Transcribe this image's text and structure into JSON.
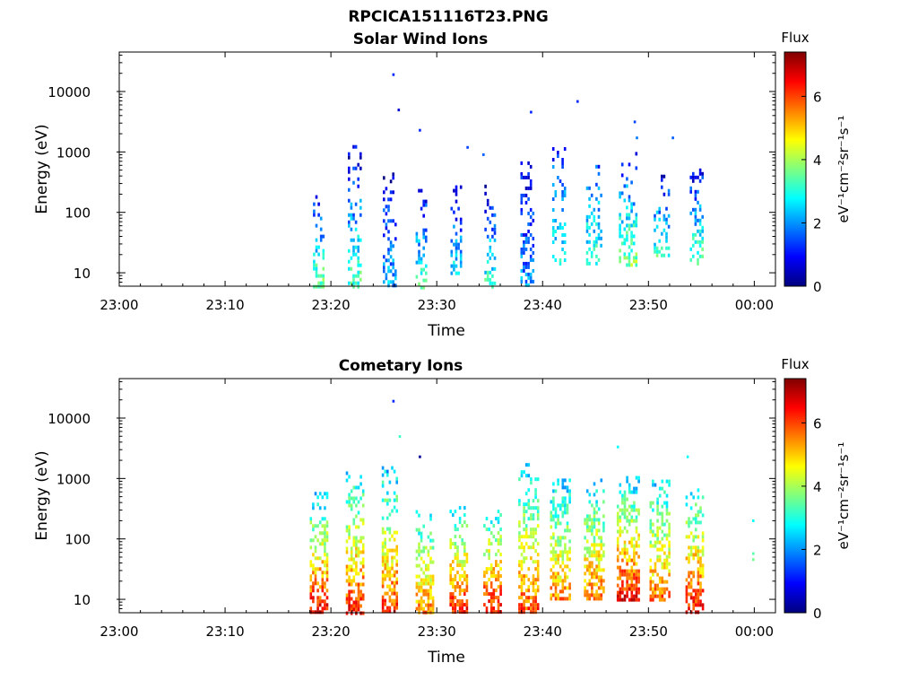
{
  "figure_title": "RPCICA151116T23.PNG",
  "colors": {
    "colormap": [
      "#00007f",
      "#0000ff",
      "#007fff",
      "#00ffff",
      "#7fff7f",
      "#ffff00",
      "#ff7f00",
      "#ff0000",
      "#7f0000"
    ],
    "background": "#ffffff"
  },
  "chart_data": [
    {
      "type": "heatmap",
      "title": "Solar Wind Ions",
      "xlabel": "Time",
      "ylabel": "Energy (eV)",
      "x_ticks": [
        "23:00",
        "23:10",
        "23:20",
        "23:30",
        "23:40",
        "23:50",
        "00:00"
      ],
      "xlim_minutes": [
        0,
        62
      ],
      "y_scale": "log",
      "y_ticks": [
        "10",
        "100",
        "1000",
        "10000"
      ],
      "ylim": [
        6,
        45000
      ],
      "colorbar": {
        "title": "Flux",
        "label": "eV⁻¹cm⁻²sr⁻¹s⁻¹",
        "range": [
          0,
          7.4
        ],
        "ticks": [
          "0",
          "2",
          "4",
          "6"
        ]
      },
      "grid": false,
      "bursts": [
        {
          "minute": 18.8,
          "width_min": 1.0,
          "emin": 6,
          "emax": 220,
          "flux_low": 3.6,
          "flux_high": 1.0,
          "density": 0.45
        },
        {
          "minute": 22.2,
          "width_min": 1.2,
          "emin": 6,
          "emax": 1300,
          "flux_low": 3.4,
          "flux_high": 0.6,
          "density": 0.5
        },
        {
          "minute": 25.5,
          "width_min": 1.2,
          "emin": 6,
          "emax": 600,
          "flux_low": 2.2,
          "flux_high": 0.5,
          "density": 0.55
        },
        {
          "minute": 28.5,
          "width_min": 1.0,
          "emin": 6,
          "emax": 280,
          "flux_low": 3.2,
          "flux_high": 0.8,
          "density": 0.4
        },
        {
          "minute": 31.8,
          "width_min": 1.0,
          "emin": 10,
          "emax": 280,
          "flux_low": 2.6,
          "flux_high": 0.6,
          "density": 0.45
        },
        {
          "minute": 35.0,
          "width_min": 1.0,
          "emin": 6,
          "emax": 330,
          "flux_low": 3.2,
          "flux_high": 0.6,
          "density": 0.45
        },
        {
          "minute": 38.5,
          "width_min": 1.2,
          "emin": 6,
          "emax": 800,
          "flux_low": 2.0,
          "flux_high": 0.6,
          "density": 0.55
        },
        {
          "minute": 41.5,
          "width_min": 1.2,
          "emin": 14,
          "emax": 1200,
          "flux_low": 3.0,
          "flux_high": 1.2,
          "density": 0.4
        },
        {
          "minute": 44.8,
          "width_min": 1.4,
          "emin": 14,
          "emax": 700,
          "flux_low": 3.2,
          "flux_high": 1.4,
          "density": 0.45
        },
        {
          "minute": 48.0,
          "width_min": 1.6,
          "emin": 14,
          "emax": 1000,
          "flux_low": 3.8,
          "flux_high": 1.0,
          "density": 0.5
        },
        {
          "minute": 51.2,
          "width_min": 1.4,
          "emin": 20,
          "emax": 420,
          "flux_low": 3.2,
          "flux_high": 0.8,
          "density": 0.45
        },
        {
          "minute": 54.5,
          "width_min": 1.2,
          "emin": 14,
          "emax": 700,
          "flux_low": 3.6,
          "flux_high": 0.6,
          "density": 0.5
        }
      ],
      "sparse_points": [
        {
          "minute": 25.8,
          "energy": 20000,
          "flux": 1.2
        },
        {
          "minute": 26.3,
          "energy": 5200,
          "flux": 0.6
        },
        {
          "minute": 28.3,
          "energy": 2400,
          "flux": 1.2
        },
        {
          "minute": 32.8,
          "energy": 1250,
          "flux": 1.4
        },
        {
          "minute": 34.3,
          "energy": 950,
          "flux": 1.6
        },
        {
          "minute": 38.8,
          "energy": 4800,
          "flux": 1.2
        },
        {
          "minute": 43.2,
          "energy": 7200,
          "flux": 1.2
        },
        {
          "minute": 48.6,
          "energy": 3300,
          "flux": 1.4
        },
        {
          "minute": 48.8,
          "energy": 1800,
          "flux": 1.8
        },
        {
          "minute": 52.2,
          "energy": 1800,
          "flux": 1.6
        }
      ]
    },
    {
      "type": "heatmap",
      "title": "Cometary Ions",
      "xlabel": "Time",
      "ylabel": "Energy (eV)",
      "x_ticks": [
        "23:00",
        "23:10",
        "23:20",
        "23:30",
        "23:40",
        "23:50",
        "00:00"
      ],
      "xlim_minutes": [
        0,
        62
      ],
      "y_scale": "log",
      "y_ticks": [
        "10",
        "100",
        "1000",
        "10000"
      ],
      "ylim": [
        6,
        45000
      ],
      "colorbar": {
        "title": "Flux",
        "label": "eV⁻¹cm⁻²sr⁻¹s⁻¹",
        "range": [
          0,
          7.4
        ],
        "ticks": [
          "0",
          "2",
          "4",
          "6"
        ]
      },
      "grid": false,
      "bursts": [
        {
          "minute": 18.8,
          "width_min": 1.6,
          "emin": 6,
          "emax": 600,
          "flux_low": 6.6,
          "flux_high": 2.4,
          "density": 0.7
        },
        {
          "minute": 22.2,
          "width_min": 1.6,
          "emin": 6,
          "emax": 1500,
          "flux_low": 6.4,
          "flux_high": 2.4,
          "density": 0.7
        },
        {
          "minute": 25.5,
          "width_min": 1.4,
          "emin": 6,
          "emax": 1600,
          "flux_low": 6.2,
          "flux_high": 2.4,
          "density": 0.7
        },
        {
          "minute": 28.8,
          "width_min": 1.6,
          "emin": 6,
          "emax": 300,
          "flux_low": 5.6,
          "flux_high": 2.6,
          "density": 0.65
        },
        {
          "minute": 32.0,
          "width_min": 1.6,
          "emin": 6,
          "emax": 350,
          "flux_low": 6.4,
          "flux_high": 2.6,
          "density": 0.7
        },
        {
          "minute": 35.2,
          "width_min": 1.6,
          "emin": 6,
          "emax": 350,
          "flux_low": 6.6,
          "flux_high": 2.6,
          "density": 0.7
        },
        {
          "minute": 38.6,
          "width_min": 1.8,
          "emin": 6,
          "emax": 1800,
          "flux_low": 6.0,
          "flux_high": 2.4,
          "density": 0.7
        },
        {
          "minute": 41.6,
          "width_min": 1.8,
          "emin": 10,
          "emax": 1000,
          "flux_low": 5.6,
          "flux_high": 2.4,
          "density": 0.7
        },
        {
          "minute": 44.8,
          "width_min": 1.8,
          "emin": 10,
          "emax": 1000,
          "flux_low": 5.8,
          "flux_high": 2.4,
          "density": 0.7
        },
        {
          "minute": 48.0,
          "width_min": 2.0,
          "emin": 10,
          "emax": 1100,
          "flux_low": 6.6,
          "flux_high": 2.4,
          "density": 0.75
        },
        {
          "minute": 51.0,
          "width_min": 1.8,
          "emin": 10,
          "emax": 1100,
          "flux_low": 5.8,
          "flux_high": 2.4,
          "density": 0.7
        },
        {
          "minute": 54.3,
          "width_min": 1.6,
          "emin": 6,
          "emax": 900,
          "flux_low": 6.6,
          "flux_high": 2.4,
          "density": 0.7
        }
      ],
      "sparse_points": [
        {
          "minute": 25.8,
          "energy": 20000,
          "flux": 1.2
        },
        {
          "minute": 26.4,
          "energy": 5200,
          "flux": 3.2
        },
        {
          "minute": 28.3,
          "energy": 2400,
          "flux": 0.2
        },
        {
          "minute": 47.0,
          "energy": 3500,
          "flux": 2.8
        },
        {
          "minute": 53.6,
          "energy": 2400,
          "flux": 2.8
        },
        {
          "minute": 59.8,
          "energy": 210,
          "flux": 2.8
        },
        {
          "minute": 59.8,
          "energy": 60,
          "flux": 3.4
        },
        {
          "minute": 59.8,
          "energy": 48,
          "flux": 3.6
        }
      ]
    }
  ]
}
